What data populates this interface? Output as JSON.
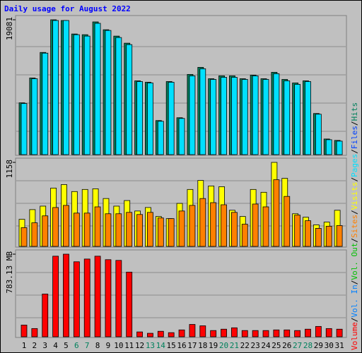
{
  "chart_data": {
    "type": "bar",
    "title": "Daily usage for August 2022",
    "categories": [
      "1",
      "2",
      "3",
      "4",
      "5",
      "6",
      "7",
      "8",
      "9",
      "10",
      "11",
      "12",
      "13",
      "14",
      "15",
      "16",
      "17",
      "18",
      "19",
      "20",
      "21",
      "22",
      "23",
      "24",
      "25",
      "26",
      "27",
      "28",
      "29",
      "30",
      "31"
    ],
    "category_colors": [
      "#000000",
      "#000000",
      "#000000",
      "#000000",
      "#000000",
      "#00805c",
      "#00805c",
      "#000000",
      "#000000",
      "#000000",
      "#000000",
      "#000000",
      "#00805c",
      "#00805c",
      "#000000",
      "#000000",
      "#000000",
      "#000000",
      "#000000",
      "#00805c",
      "#00805c",
      "#000000",
      "#000000",
      "#000000",
      "#000000",
      "#000000",
      "#00805c",
      "#00805c",
      "#000000",
      "#000000",
      "#000000"
    ],
    "legend_separator": "/",
    "panels": [
      {
        "ylim": [
          0,
          19081
        ],
        "yticks": [
          19081
        ],
        "series": [
          {
            "name": "Pages",
            "color": "#00e0ff",
            "values": [
              7230,
              10740,
              14360,
              18980,
              18980,
              16970,
              16770,
              18580,
              17570,
              16570,
              15570,
              10340,
              10140,
              4720,
              10240,
              5120,
              11150,
              12150,
              10640,
              10940,
              10940,
              10640,
              11150,
              10640,
              11450,
              10440,
              9940,
              10340,
              5720,
              2110,
              1910
            ]
          },
          {
            "name": "Files",
            "color": "#0040ff",
            "values": [
              null,
              null,
              null,
              null,
              null,
              null,
              null,
              null,
              null,
              null,
              null,
              null,
              null,
              null,
              null,
              null,
              null,
              null,
              null,
              null,
              null,
              null,
              null,
              null,
              null,
              null,
              null,
              null,
              null,
              null,
              null
            ]
          },
          {
            "name": "Hits",
            "color": "#00805c",
            "values": [
              7330,
              10845,
              14460,
              19081,
              18980,
              17070,
              16970,
              18780,
              17670,
              16770,
              15770,
              10440,
              10240,
              4820,
              10340,
              5220,
              11350,
              12350,
              10740,
              11150,
              11150,
              10740,
              11250,
              10740,
              11650,
              10640,
              10140,
              10440,
              5820,
              2210,
              2010
            ]
          }
        ]
      },
      {
        "ylim": [
          0,
          1158
        ],
        "yticks": [
          1158
        ],
        "series": [
          {
            "name": "Sites",
            "color": "#ff8000",
            "values": [
              258,
              325,
              421,
              536,
              565,
              459,
              459,
              545,
              450,
              450,
              469,
              440,
              469,
              392,
              383,
              488,
              565,
              660,
              603,
              574,
              469,
              306,
              584,
              545,
              919,
              689,
              431,
              354,
              249,
              278,
              287
            ]
          },
          {
            "name": "Visits",
            "color": "#ffff00",
            "values": [
              373,
              507,
              555,
              804,
              852,
              756,
              785,
              794,
              660,
              555,
              632,
              488,
              536,
              412,
              383,
              593,
              785,
              909,
              833,
              823,
              498,
              412,
              785,
              746,
              1158,
              938,
              450,
              402,
              297,
              335,
              498
            ]
          }
        ]
      },
      {
        "ylim": [
          0,
          783.13
        ],
        "yticks": [
          {
            "value": 783.13,
            "label": "783.13 MB"
          }
        ],
        "series": [
          {
            "name": "Volume",
            "color": "#ff0000",
            "values": [
              111,
              78,
              405,
              764,
              783.13,
              711,
              737,
              764,
              731,
              724,
              613,
              46,
              33,
              52,
              39,
              65,
              117,
              104,
              59,
              72,
              85,
              59,
              59,
              59,
              65,
              65,
              59,
              72,
              98,
              78,
              72
            ]
          },
          {
            "name": "Vol. In",
            "color": "#0080ff",
            "values": [
              null,
              null,
              null,
              null,
              null,
              null,
              null,
              null,
              null,
              null,
              null,
              null,
              null,
              null,
              null,
              null,
              null,
              null,
              null,
              null,
              null,
              null,
              null,
              null,
              null,
              null,
              null,
              null,
              null,
              null,
              null
            ]
          },
          {
            "name": "Vol. Out",
            "color": "#00c000",
            "values": [
              null,
              null,
              null,
              null,
              null,
              null,
              null,
              null,
              null,
              null,
              null,
              null,
              null,
              null,
              null,
              null,
              null,
              null,
              null,
              null,
              null,
              null,
              null,
              null,
              null,
              null,
              null,
              null,
              null,
              null,
              null
            ]
          }
        ]
      }
    ]
  }
}
